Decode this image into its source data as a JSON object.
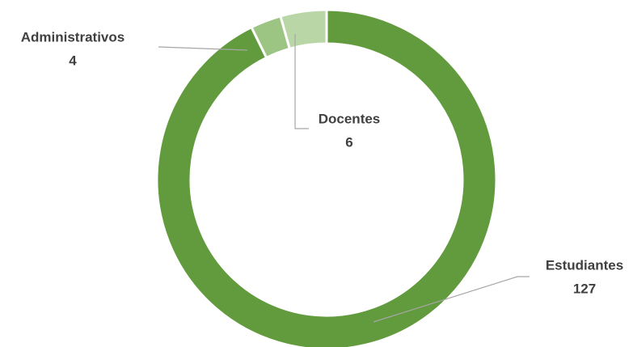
{
  "chart_data": {
    "type": "donut",
    "categories": [
      "Estudiantes",
      "Administrativos",
      "Docentes"
    ],
    "values": [
      127,
      4,
      6
    ],
    "colors": [
      "#629b3e",
      "#9cc584",
      "#b9d6a6"
    ]
  }
}
